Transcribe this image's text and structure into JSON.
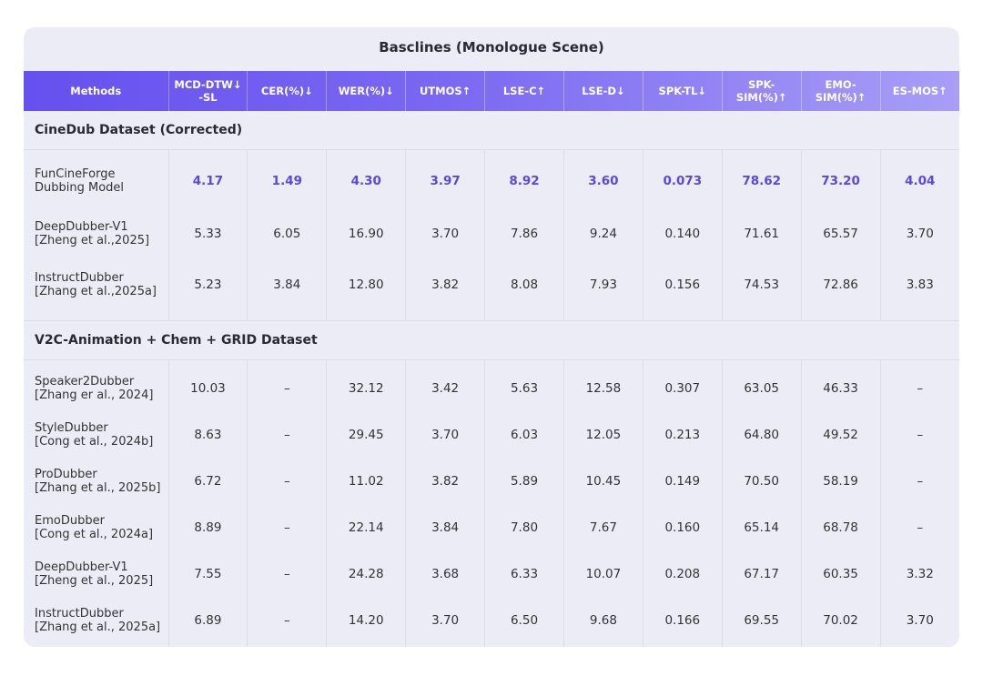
{
  "title": "Basclines (Monologue Scene)",
  "columns": [
    "Methods",
    "MCD-DTW↓ -SL",
    "CER(%)↓",
    "WER(%)↓",
    "UTMOS↑",
    "LSE-C↑",
    "LSE-D↓",
    "SPK-TL↓",
    "SPK-SIM(%)↑",
    "EMO-SIM(%)↑",
    "ES-MOS↑"
  ],
  "colors": {
    "header_start": "#6650ef",
    "header_end": "#a89ef6",
    "best": "#5a48e0",
    "background": "#ececf7"
  },
  "sections": [
    {
      "name": "CineDub Dataset (Corrected)",
      "rows": [
        {
          "method": [
            "FunCineForge",
            "Dubbing Model"
          ],
          "best": true,
          "values": [
            "4.17",
            "1.49",
            "4.30",
            "3.97",
            "8.92",
            "3.60",
            "0.073",
            "78.62",
            "73.20",
            "4.04"
          ]
        },
        {
          "method": [
            "DeepDubber-V1",
            "[Zheng et al.,2025]"
          ],
          "values": [
            "5.33",
            "6.05",
            "16.90",
            "3.70",
            "7.86",
            "9.24",
            "0.140",
            "71.61",
            "65.57",
            "3.70"
          ]
        },
        {
          "method": [
            "InstructDubber",
            "[Zhang et al.,2025a]"
          ],
          "values": [
            "5.23",
            "3.84",
            "12.80",
            "3.82",
            "8.08",
            "7.93",
            "0.156",
            "74.53",
            "72.86",
            "3.83"
          ]
        }
      ]
    },
    {
      "name": "V2C-Animation + Chem + GRID Dataset",
      "rows": [
        {
          "method": [
            "Speaker2Dubber",
            "[Zhang er al., 2024]"
          ],
          "values": [
            "10.03",
            "–",
            "32.12",
            "3.42",
            "5.63",
            "12.58",
            "0.307",
            "63.05",
            "46.33",
            "–"
          ]
        },
        {
          "method": [
            "StyleDubber",
            "[Cong et al., 2024b]"
          ],
          "values": [
            "8.63",
            "–",
            "29.45",
            "3.70",
            "6.03",
            "12.05",
            "0.213",
            "64.80",
            "49.52",
            "–"
          ]
        },
        {
          "method": [
            "ProDubber",
            "[Zhang et al., 2025b]"
          ],
          "values": [
            "6.72",
            "–",
            "11.02",
            "3.82",
            "5.89",
            "10.45",
            "0.149",
            "70.50",
            "58.19",
            "–"
          ]
        },
        {
          "method": [
            "EmoDubber",
            "[Cong et al., 2024a]"
          ],
          "values": [
            "8.89",
            "–",
            "22.14",
            "3.84",
            "7.80",
            "7.67",
            "0.160",
            "65.14",
            "68.78",
            "–"
          ]
        },
        {
          "method": [
            "DeepDubber-V1",
            "[Zheng et al., 2025]"
          ],
          "values": [
            "7.55",
            "–",
            "24.28",
            "3.68",
            "6.33",
            "10.07",
            "0.208",
            "67.17",
            "60.35",
            "3.32"
          ]
        },
        {
          "method": [
            "InstructDubber",
            "[Zhang et al., 2025a]"
          ],
          "values": [
            "6.89",
            "–",
            "14.20",
            "3.70",
            "6.50",
            "9.68",
            "0.166",
            "69.55",
            "70.02",
            "3.70"
          ]
        }
      ]
    }
  ]
}
